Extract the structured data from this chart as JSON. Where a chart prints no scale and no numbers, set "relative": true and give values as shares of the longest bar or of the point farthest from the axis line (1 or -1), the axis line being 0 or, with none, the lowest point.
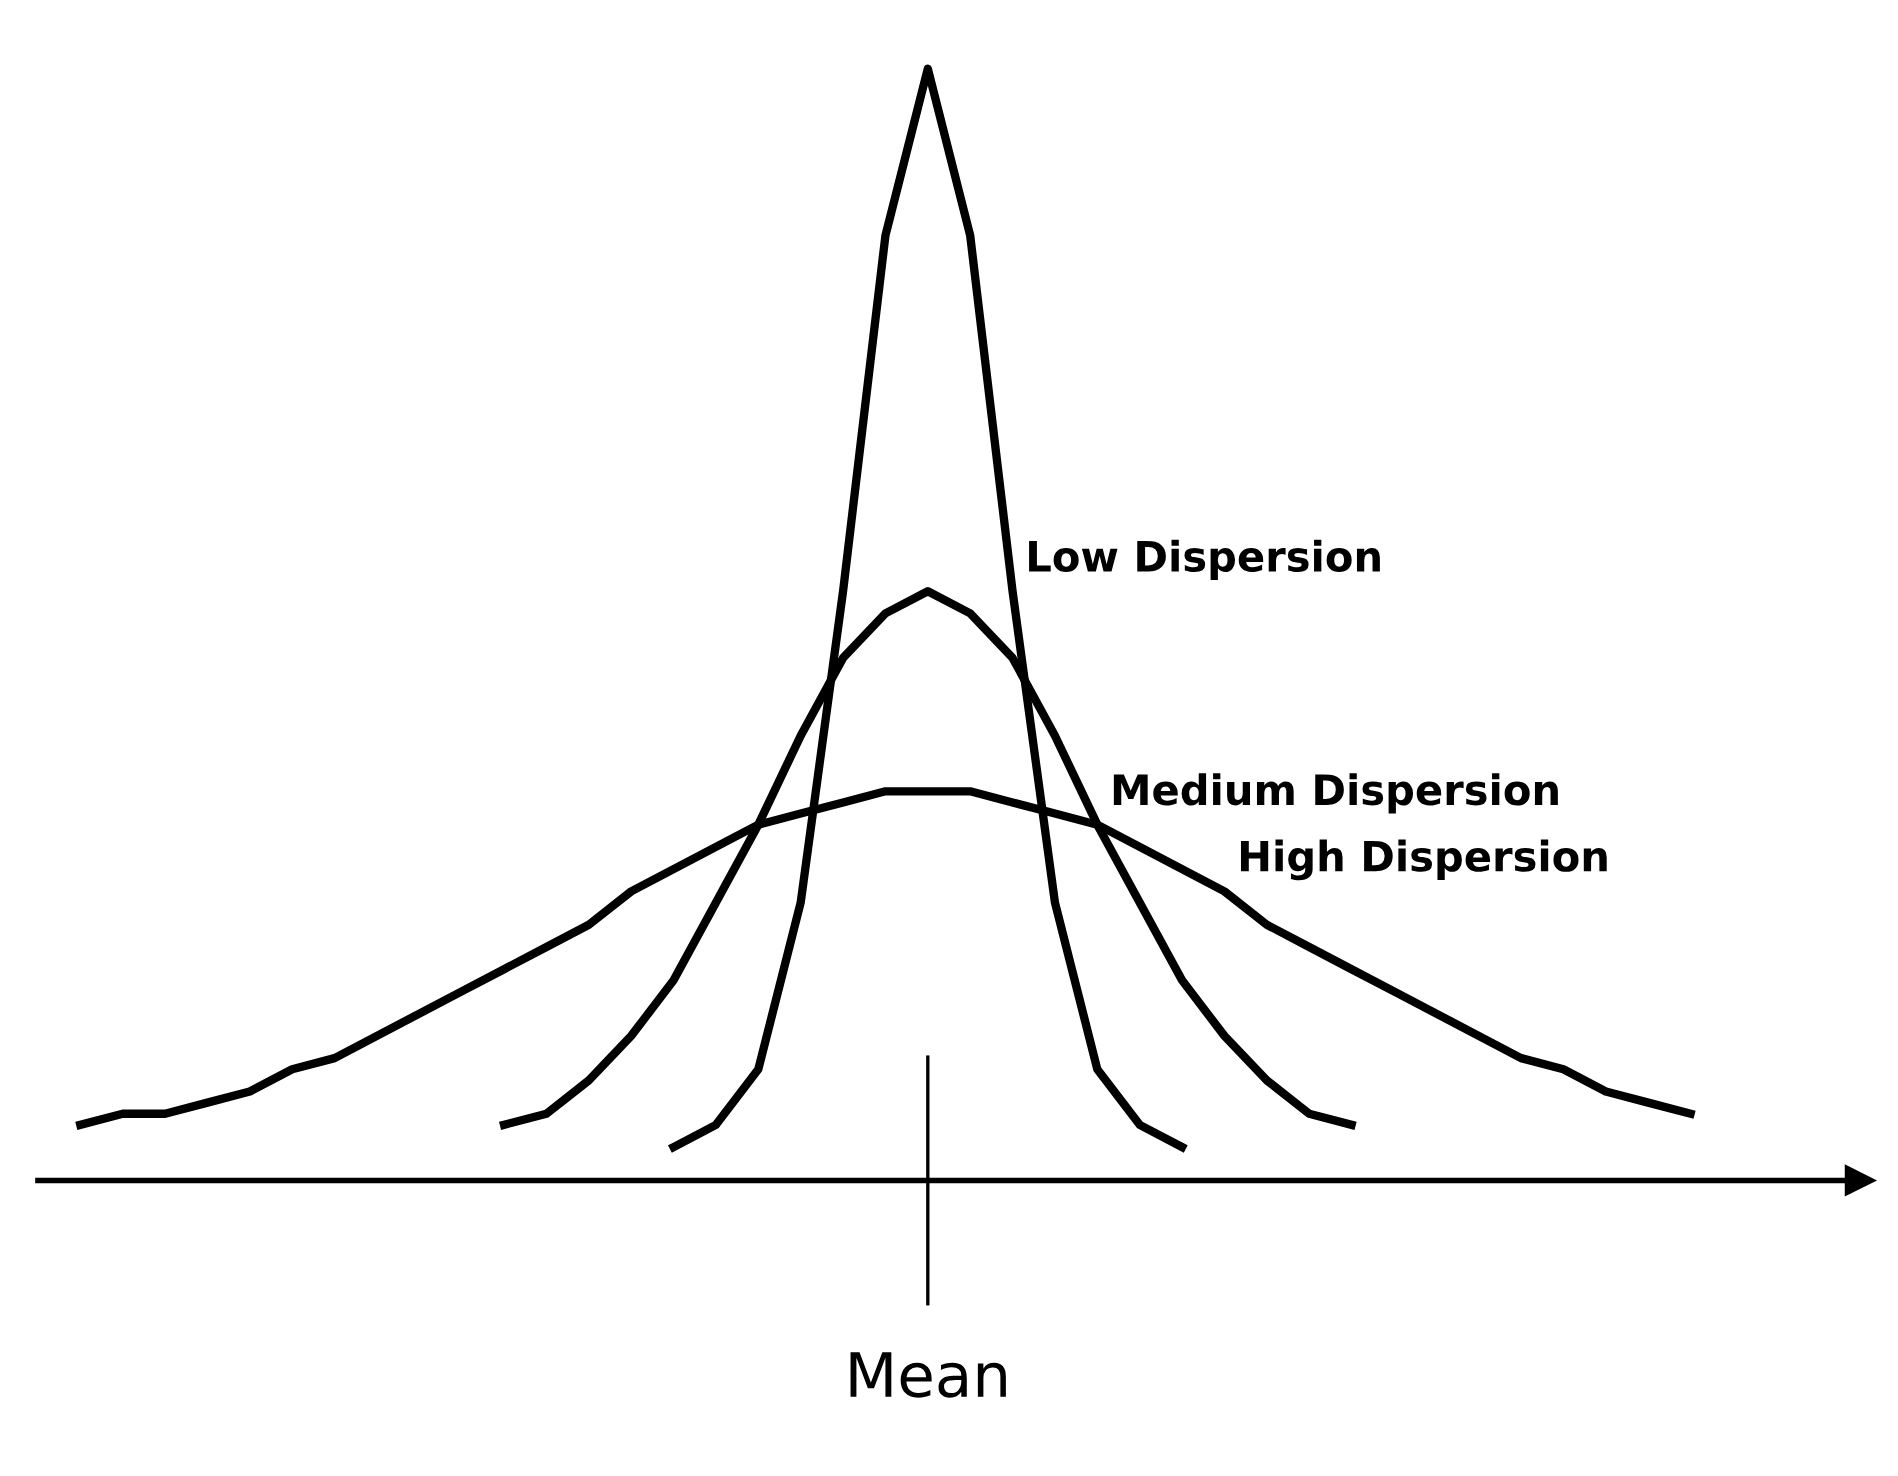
{
  "chart_data": {
    "type": "line",
    "relative": true,
    "categories": [
      null,
      null,
      null,
      null,
      null,
      null,
      null,
      null,
      null,
      null,
      null,
      null,
      null,
      null,
      null,
      null,
      null,
      null,
      null,
      null,
      null,
      null,
      null,
      null,
      null,
      null,
      null,
      null,
      null,
      null,
      null,
      null,
      null,
      null,
      null,
      null,
      null,
      null,
      null,
      null,
      null
    ],
    "series": [
      {
        "name": "Low Dispersion",
        "color": "#000000",
        "values": [
          null,
          null,
          null,
          null,
          null,
          null,
          null,
          null,
          null,
          null,
          null,
          null,
          null,
          null,
          0.03,
          0.05,
          0.1,
          0.25,
          0.53,
          0.85,
          1.0,
          0.85,
          0.53,
          0.25,
          0.1,
          0.05,
          0.03,
          null,
          null,
          null,
          null,
          null,
          null,
          null,
          null,
          null,
          null,
          null,
          null,
          null,
          null
        ]
      },
      {
        "name": "Medium Dispersion",
        "color": "#000000",
        "values": [
          null,
          null,
          null,
          null,
          null,
          null,
          null,
          null,
          null,
          null,
          0.05,
          0.06,
          0.09,
          0.13,
          0.18,
          0.25,
          0.32,
          0.4,
          0.47,
          0.51,
          0.53,
          0.51,
          0.47,
          0.4,
          0.32,
          0.25,
          0.18,
          0.13,
          0.09,
          0.06,
          0.05,
          null,
          null,
          null,
          null,
          null,
          null,
          null,
          null,
          null,
          null
        ]
      },
      {
        "name": "High Dispersion",
        "color": "#000000",
        "values": [
          0.05,
          0.06,
          0.06,
          0.07,
          0.08,
          0.1,
          0.11,
          0.13,
          0.15,
          0.17,
          0.19,
          0.21,
          0.23,
          0.26,
          0.28,
          0.3,
          0.32,
          0.33,
          0.34,
          0.35,
          0.35,
          0.35,
          0.34,
          0.33,
          0.32,
          0.3,
          0.28,
          0.26,
          0.23,
          0.21,
          0.19,
          0.17,
          0.15,
          0.13,
          0.11,
          0.1,
          0.08,
          0.07,
          0.06,
          null,
          null
        ]
      }
    ],
    "annotations": [
      "Mean"
    ],
    "legend": false,
    "grid": false,
    "marker": "none",
    "line_style": "solid"
  }
}
